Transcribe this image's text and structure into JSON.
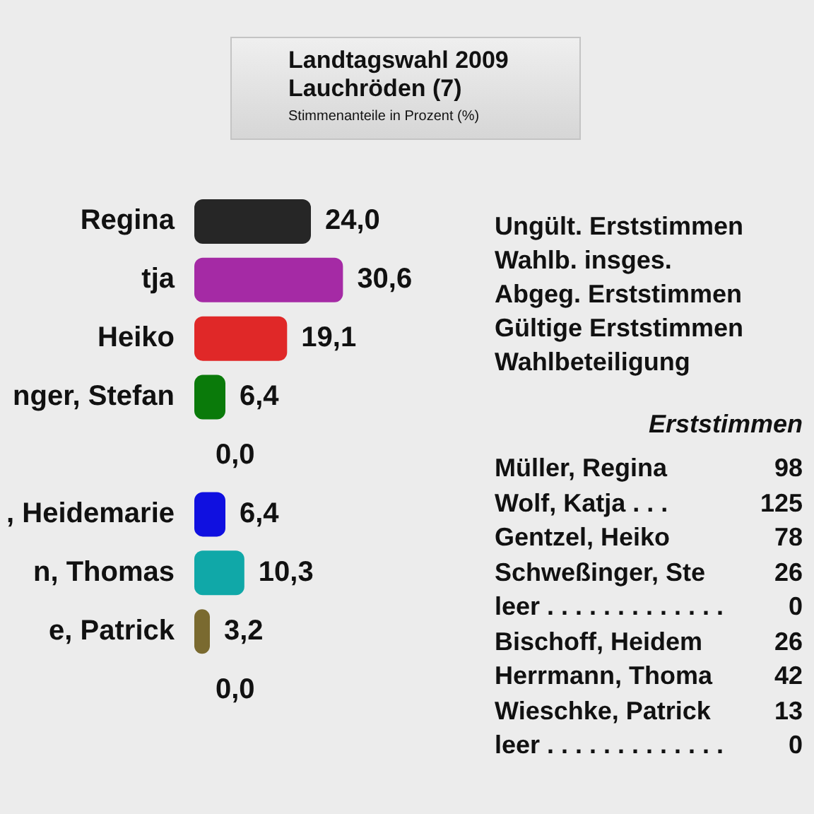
{
  "chart_data": {
    "type": "bar",
    "orientation": "horizontal",
    "title": "Landtagswahl 2009\nLauchröden (7)",
    "subtitle": "Stimmenanteile in Prozent (%)",
    "categories": [
      "Regina",
      "tja",
      "Heiko",
      "nger, Stefan",
      null,
      ", Heidemarie",
      "n, Thomas",
      "e, Patrick",
      null
    ],
    "values": [
      24.0,
      30.6,
      19.1,
      6.4,
      0.0,
      6.4,
      10.3,
      3.2,
      0.0
    ],
    "value_labels": [
      "24,0",
      "30,6",
      "19,1",
      "6,4",
      "0,0",
      "6,4",
      "10,3",
      "3,2",
      "0,0"
    ],
    "colors": [
      "#262626",
      "#a52aa5",
      "#e02828",
      "#0a7a0a",
      "#c8405a",
      "#1010e0",
      "#10a8a8",
      "#7a6a30",
      "#bdbdbd"
    ],
    "grid": false,
    "legend": false,
    "annotations": [
      "Ungült. Erststimmen",
      "Wahlb. insges.",
      "Abgeg. Erststimmen",
      "Gültige Erststimmen",
      "Wahlbeteiligung",
      "Erststimmen",
      "Müller, Regina",
      "98",
      "Wolf, Katja . . .",
      "125",
      "Gentzel, Heiko",
      "78",
      "Schweßinger, Ste",
      "26",
      "leer . . . . . . . . . . . . .",
      "0",
      "Bischoff, Heidem",
      "26",
      "Herrmann, Thoma",
      "42",
      "Wieschke, Patrick",
      "13",
      "leer . . . . . . . . . . . . .",
      "0"
    ]
  }
}
